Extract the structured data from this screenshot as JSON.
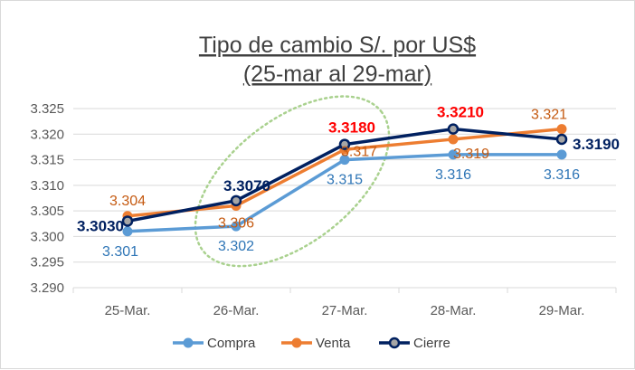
{
  "chart_data": {
    "type": "line",
    "title_line1": "Tipo de cambio S/. por US$",
    "title_line2": "(25-mar al 29-mar)",
    "categories": [
      "25-Mar.",
      "26-Mar.",
      "27-Mar.",
      "28-Mar.",
      "29-Mar."
    ],
    "ylim": [
      3.29,
      3.325
    ],
    "yticks": [
      "3.290",
      "3.295",
      "3.300",
      "3.305",
      "3.310",
      "3.315",
      "3.320",
      "3.325"
    ],
    "grid": true,
    "legend_position": "bottom",
    "series": [
      {
        "name": "Compra",
        "color": "#5b9bd5",
        "values": [
          3.301,
          3.302,
          3.315,
          3.316,
          3.316
        ],
        "labels": [
          "3.301",
          "3.302",
          "3.315",
          "3.316",
          "3.316"
        ],
        "label_color": "#2e75b6"
      },
      {
        "name": "Venta",
        "color": "#ed7d31",
        "values": [
          3.304,
          3.306,
          3.317,
          3.319,
          3.321
        ],
        "labels": [
          "3.304",
          "3.306",
          "3.317",
          "3.319",
          "3.321"
        ],
        "label_color": "#c55a11"
      },
      {
        "name": "Cierre",
        "color": "#002060",
        "values": [
          3.303,
          3.307,
          3.318,
          3.321,
          3.319
        ],
        "labels": [
          "3.3030",
          "3.3070",
          "3.3180",
          "3.3210",
          "3.3190"
        ],
        "label_colors": [
          "#002060",
          "#002060",
          "#ff0000",
          "#ff0000",
          "#002060"
        ]
      }
    ],
    "annotation": {
      "type": "dotted-ellipse",
      "color": "#a9d18e"
    }
  }
}
